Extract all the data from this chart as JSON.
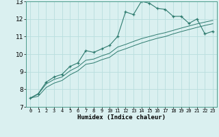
{
  "xlabel": "Humidex (Indice chaleur)",
  "x_values": [
    0,
    1,
    2,
    3,
    4,
    5,
    6,
    7,
    8,
    9,
    10,
    11,
    12,
    13,
    14,
    15,
    16,
    17,
    18,
    19,
    20,
    21,
    22,
    23
  ],
  "line1_y": [
    7.5,
    7.75,
    8.4,
    8.7,
    8.85,
    9.3,
    9.5,
    10.2,
    10.1,
    10.3,
    10.5,
    11.0,
    12.4,
    12.25,
    13.0,
    12.9,
    12.6,
    12.55,
    12.15,
    12.15,
    11.75,
    12.0,
    11.15,
    11.3
  ],
  "line3_y": [
    7.5,
    7.72,
    8.3,
    8.56,
    8.7,
    9.05,
    9.28,
    9.65,
    9.72,
    9.9,
    10.05,
    10.4,
    10.55,
    10.72,
    10.88,
    11.0,
    11.12,
    11.22,
    11.35,
    11.48,
    11.6,
    11.72,
    11.82,
    11.92
  ],
  "line4_y": [
    7.5,
    7.6,
    8.1,
    8.35,
    8.5,
    8.82,
    9.05,
    9.42,
    9.5,
    9.68,
    9.82,
    10.15,
    10.3,
    10.47,
    10.63,
    10.77,
    10.9,
    11.0,
    11.15,
    11.28,
    11.4,
    11.52,
    11.63,
    11.73
  ],
  "line_color": "#2d7a6e",
  "bg_color": "#daf0f0",
  "grid_color": "#b8dede",
  "xlim": [
    -0.5,
    23.5
  ],
  "ylim": [
    7,
    13
  ],
  "yticks": [
    7,
    8,
    9,
    10,
    11,
    12,
    13
  ],
  "xticks": [
    0,
    1,
    2,
    3,
    4,
    5,
    6,
    7,
    8,
    9,
    10,
    11,
    12,
    13,
    14,
    15,
    16,
    17,
    18,
    19,
    20,
    21,
    22,
    23
  ]
}
